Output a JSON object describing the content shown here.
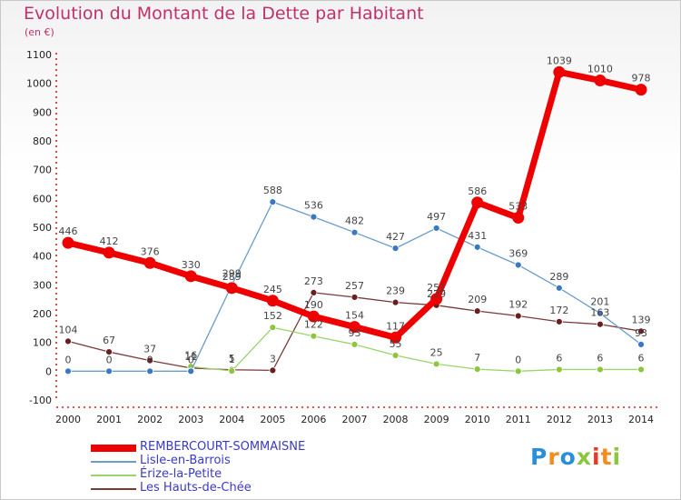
{
  "title": "Evolution du Montant de la Dette par Habitant",
  "unit": "(en €)",
  "logo": {
    "letters": [
      "P",
      "r",
      "o",
      "x",
      "i",
      "t",
      "i"
    ],
    "colors": [
      "#2a8fd8",
      "#f28c1e",
      "#2a8fd8",
      "#8cc63f",
      "#e23c2b",
      "#f28c1e",
      "#8cc63f"
    ]
  },
  "chart_data": {
    "type": "line",
    "title": "Evolution du Montant de la Dette par Habitant",
    "ylabel": "(en €)",
    "xlabel": "",
    "x": [
      "2000",
      "2001",
      "2002",
      "2003",
      "2004",
      "2005",
      "2006",
      "2007",
      "2008",
      "2009",
      "2010",
      "2011",
      "2012",
      "2013",
      "2014"
    ],
    "ylim": [
      -100,
      1100
    ],
    "yticks": [
      -100,
      0,
      100,
      200,
      300,
      400,
      500,
      600,
      700,
      800,
      900,
      1000,
      1100
    ],
    "grid": false,
    "legend_position": "bottom",
    "series": [
      {
        "name": "REMBERCOURT-SOMMAISNE",
        "color": "#ee0000",
        "marker": "#ee0000",
        "width": 7,
        "values": [
          446,
          412,
          376,
          330,
          289,
          245,
          190,
          154,
          117,
          251,
          586,
          533,
          1039,
          1010,
          978
        ],
        "labels": [
          "446",
          "412",
          "376",
          "330",
          "289",
          "245",
          "190",
          "154",
          "117",
          "251",
          "586",
          "533",
          "1039",
          "1010",
          "978"
        ]
      },
      {
        "name": "Lisle-en-Barrois",
        "color": "#6a9ccc",
        "marker": "#3a78c0",
        "width": 1.3,
        "values": [
          0,
          0,
          0,
          0,
          299,
          588,
          536,
          482,
          427,
          497,
          431,
          369,
          289,
          201,
          93
        ],
        "labels": [
          "0",
          "0",
          "0",
          "0",
          "299",
          "588",
          "536",
          "482",
          "427",
          "497",
          "431",
          "369",
          "289",
          "201",
          "93"
        ]
      },
      {
        "name": "Érize-la-Petite",
        "color": "#9ad46a",
        "marker": "#8cc63f",
        "width": 1.3,
        "values": [
          null,
          null,
          null,
          16,
          1,
          152,
          122,
          93,
          55,
          25,
          7,
          0,
          6,
          6,
          6
        ],
        "labels": [
          "",
          "",
          "",
          "16",
          "1",
          "152",
          "122",
          "93",
          "55",
          "25",
          "7",
          "0",
          "6",
          "6",
          "6"
        ]
      },
      {
        "name": "Les Hauts-de-Chée",
        "color": "#7a3a3a",
        "marker": "#6a1e1e",
        "width": 1.3,
        "values": [
          104,
          67,
          37,
          11,
          5,
          3,
          273,
          257,
          239,
          229,
          209,
          192,
          172,
          163,
          139
        ],
        "labels": [
          "104",
          "67",
          "37",
          "11",
          "5",
          "3",
          "273",
          "257",
          "239",
          "229",
          "209",
          "192",
          "172",
          "163",
          "139"
        ]
      }
    ],
    "label_order": [
      3,
      2,
      1,
      0
    ]
  }
}
